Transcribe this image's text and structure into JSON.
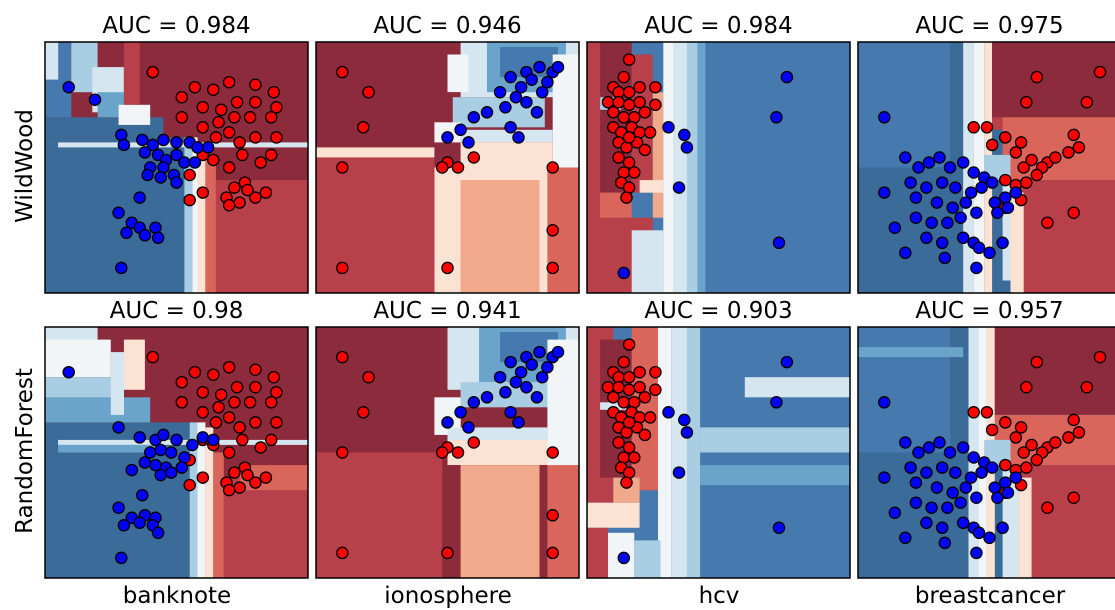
{
  "row_labels": [
    "WildWood",
    "RandomForest"
  ],
  "col_labels": [
    "banknote",
    "ionosphere",
    "hcv",
    "breastcancer"
  ],
  "colors": {
    "class0": "#0000ff",
    "class1": "#ff0000",
    "region_low": "#3b6b99",
    "region_high": "#8b2b3c",
    "point_edge": "#000000"
  },
  "chart_data": [
    {
      "type": "scatter",
      "dataset": "banknote",
      "model": "WildWood",
      "title": "AUC = 0.984",
      "auc": 0.984,
      "xlabel": "",
      "ylabel": "WildWood",
      "blue_points": [
        [
          0.09,
          0.82
        ],
        [
          0.19,
          0.77
        ],
        [
          0.29,
          0.63
        ],
        [
          0.3,
          0.59
        ],
        [
          0.37,
          0.61
        ],
        [
          0.41,
          0.59
        ],
        [
          0.45,
          0.61
        ],
        [
          0.5,
          0.6
        ],
        [
          0.55,
          0.6
        ],
        [
          0.58,
          0.58
        ],
        [
          0.62,
          0.58
        ],
        [
          0.38,
          0.56
        ],
        [
          0.43,
          0.55
        ],
        [
          0.46,
          0.53
        ],
        [
          0.5,
          0.55
        ],
        [
          0.53,
          0.52
        ],
        [
          0.4,
          0.5
        ],
        [
          0.45,
          0.5
        ],
        [
          0.49,
          0.47
        ],
        [
          0.39,
          0.47
        ],
        [
          0.44,
          0.46
        ],
        [
          0.5,
          0.44
        ],
        [
          0.57,
          0.52
        ],
        [
          0.36,
          0.38
        ],
        [
          0.28,
          0.32
        ],
        [
          0.33,
          0.28
        ],
        [
          0.36,
          0.26
        ],
        [
          0.42,
          0.26
        ],
        [
          0.38,
          0.23
        ],
        [
          0.43,
          0.22
        ],
        [
          0.31,
          0.24
        ],
        [
          0.29,
          0.1
        ]
      ]
    },
    {
      "type": "scatter",
      "dataset": "ionosphere",
      "model": "WildWood",
      "title": "AUC = 0.946",
      "auc": 0.946,
      "xlabel": "",
      "ylabel": "",
      "blue_points": [
        [
          0.8,
          0.88
        ],
        [
          0.85,
          0.9
        ],
        [
          0.9,
          0.88
        ],
        [
          0.74,
          0.86
        ],
        [
          0.78,
          0.82
        ],
        [
          0.82,
          0.85
        ],
        [
          0.88,
          0.84
        ],
        [
          0.92,
          0.9
        ],
        [
          0.7,
          0.8
        ],
        [
          0.76,
          0.78
        ],
        [
          0.8,
          0.76
        ],
        [
          0.86,
          0.8
        ],
        [
          0.72,
          0.74
        ],
        [
          0.84,
          0.72
        ],
        [
          0.65,
          0.72
        ],
        [
          0.6,
          0.7
        ],
        [
          0.55,
          0.65
        ],
        [
          0.5,
          0.62
        ],
        [
          0.74,
          0.66
        ],
        [
          0.77,
          0.62
        ],
        [
          0.58,
          0.6
        ]
      ]
    },
    {
      "type": "scatter",
      "dataset": "hcv",
      "model": "WildWood",
      "title": "AUC = 0.984",
      "auc": 0.984,
      "xlabel": "",
      "ylabel": "",
      "blue_points": [
        [
          0.76,
          0.86
        ],
        [
          0.72,
          0.7
        ],
        [
          0.31,
          0.66
        ],
        [
          0.37,
          0.63
        ],
        [
          0.38,
          0.58
        ],
        [
          0.35,
          0.42
        ],
        [
          0.73,
          0.2
        ],
        [
          0.14,
          0.08
        ]
      ]
    },
    {
      "type": "scatter",
      "dataset": "breastcancer",
      "model": "WildWood",
      "title": "AUC = 0.975",
      "auc": 0.975,
      "xlabel": "",
      "ylabel": "",
      "blue_points": [
        [
          0.1,
          0.7
        ],
        [
          0.18,
          0.54
        ],
        [
          0.23,
          0.5
        ],
        [
          0.27,
          0.52
        ],
        [
          0.31,
          0.54
        ],
        [
          0.35,
          0.5
        ],
        [
          0.4,
          0.52
        ],
        [
          0.44,
          0.48
        ],
        [
          0.48,
          0.46
        ],
        [
          0.2,
          0.44
        ],
        [
          0.26,
          0.42
        ],
        [
          0.32,
          0.44
        ],
        [
          0.37,
          0.42
        ],
        [
          0.43,
          0.4
        ],
        [
          0.47,
          0.42
        ],
        [
          0.51,
          0.44
        ],
        [
          0.1,
          0.4
        ],
        [
          0.22,
          0.38
        ],
        [
          0.3,
          0.36
        ],
        [
          0.36,
          0.34
        ],
        [
          0.41,
          0.36
        ],
        [
          0.45,
          0.32
        ],
        [
          0.52,
          0.36
        ],
        [
          0.56,
          0.38
        ],
        [
          0.6,
          0.4
        ],
        [
          0.22,
          0.3
        ],
        [
          0.28,
          0.28
        ],
        [
          0.34,
          0.28
        ],
        [
          0.39,
          0.3
        ],
        [
          0.53,
          0.32
        ],
        [
          0.57,
          0.34
        ],
        [
          0.14,
          0.26
        ],
        [
          0.26,
          0.22
        ],
        [
          0.32,
          0.2
        ],
        [
          0.4,
          0.22
        ],
        [
          0.44,
          0.2
        ],
        [
          0.46,
          0.18
        ],
        [
          0.55,
          0.2
        ],
        [
          0.5,
          0.16
        ],
        [
          0.18,
          0.16
        ],
        [
          0.33,
          0.14
        ],
        [
          0.45,
          0.1
        ]
      ]
    },
    {
      "type": "scatter",
      "dataset": "banknote",
      "model": "RandomForest",
      "title": "AUC = 0.98",
      "auc": 0.98,
      "xlabel": "banknote",
      "ylabel": "RandomForest",
      "blue_points": [
        [
          0.09,
          0.82
        ],
        [
          0.28,
          0.6
        ],
        [
          0.36,
          0.56
        ],
        [
          0.42,
          0.55
        ],
        [
          0.45,
          0.57
        ],
        [
          0.5,
          0.55
        ],
        [
          0.56,
          0.53
        ],
        [
          0.6,
          0.56
        ],
        [
          0.64,
          0.55
        ],
        [
          0.4,
          0.5
        ],
        [
          0.44,
          0.51
        ],
        [
          0.48,
          0.5
        ],
        [
          0.53,
          0.48
        ],
        [
          0.38,
          0.46
        ],
        [
          0.42,
          0.45
        ],
        [
          0.46,
          0.44
        ],
        [
          0.52,
          0.44
        ],
        [
          0.44,
          0.41
        ],
        [
          0.48,
          0.42
        ],
        [
          0.33,
          0.43
        ],
        [
          0.37,
          0.33
        ],
        [
          0.28,
          0.28
        ],
        [
          0.33,
          0.24
        ],
        [
          0.38,
          0.25
        ],
        [
          0.42,
          0.24
        ],
        [
          0.36,
          0.22
        ],
        [
          0.41,
          0.21
        ],
        [
          0.43,
          0.18
        ],
        [
          0.3,
          0.21
        ],
        [
          0.29,
          0.08
        ]
      ]
    },
    {
      "type": "scatter",
      "dataset": "ionosphere",
      "model": "RandomForest",
      "title": "AUC = 0.941",
      "auc": 0.941,
      "xlabel": "ionosphere",
      "ylabel": "",
      "blue_points": [
        [
          0.8,
          0.88
        ],
        [
          0.85,
          0.9
        ],
        [
          0.9,
          0.88
        ],
        [
          0.74,
          0.86
        ],
        [
          0.78,
          0.82
        ],
        [
          0.82,
          0.85
        ],
        [
          0.88,
          0.84
        ],
        [
          0.92,
          0.9
        ],
        [
          0.7,
          0.8
        ],
        [
          0.76,
          0.78
        ],
        [
          0.8,
          0.76
        ],
        [
          0.86,
          0.8
        ],
        [
          0.72,
          0.74
        ],
        [
          0.84,
          0.72
        ],
        [
          0.65,
          0.72
        ],
        [
          0.6,
          0.7
        ],
        [
          0.55,
          0.66
        ],
        [
          0.5,
          0.62
        ],
        [
          0.74,
          0.66
        ],
        [
          0.77,
          0.62
        ],
        [
          0.58,
          0.6
        ]
      ]
    },
    {
      "type": "scatter",
      "dataset": "hcv",
      "model": "RandomForest",
      "title": "AUC = 0.903",
      "auc": 0.903,
      "xlabel": "hcv",
      "ylabel": "",
      "blue_points": [
        [
          0.76,
          0.86
        ],
        [
          0.72,
          0.7
        ],
        [
          0.31,
          0.66
        ],
        [
          0.37,
          0.63
        ],
        [
          0.38,
          0.58
        ],
        [
          0.35,
          0.42
        ],
        [
          0.73,
          0.2
        ],
        [
          0.14,
          0.08
        ]
      ]
    },
    {
      "type": "scatter",
      "dataset": "breastcancer",
      "model": "RandomForest",
      "title": "AUC = 0.957",
      "auc": 0.957,
      "xlabel": "breastcancer",
      "ylabel": "",
      "blue_points": [
        [
          0.1,
          0.7
        ],
        [
          0.18,
          0.54
        ],
        [
          0.23,
          0.5
        ],
        [
          0.27,
          0.52
        ],
        [
          0.31,
          0.54
        ],
        [
          0.35,
          0.5
        ],
        [
          0.4,
          0.52
        ],
        [
          0.44,
          0.48
        ],
        [
          0.48,
          0.46
        ],
        [
          0.2,
          0.44
        ],
        [
          0.26,
          0.42
        ],
        [
          0.32,
          0.44
        ],
        [
          0.37,
          0.42
        ],
        [
          0.43,
          0.4
        ],
        [
          0.47,
          0.42
        ],
        [
          0.51,
          0.44
        ],
        [
          0.1,
          0.4
        ],
        [
          0.22,
          0.38
        ],
        [
          0.3,
          0.36
        ],
        [
          0.36,
          0.34
        ],
        [
          0.41,
          0.36
        ],
        [
          0.45,
          0.32
        ],
        [
          0.52,
          0.36
        ],
        [
          0.56,
          0.38
        ],
        [
          0.6,
          0.4
        ],
        [
          0.22,
          0.3
        ],
        [
          0.28,
          0.28
        ],
        [
          0.34,
          0.28
        ],
        [
          0.39,
          0.3
        ],
        [
          0.53,
          0.32
        ],
        [
          0.57,
          0.34
        ],
        [
          0.14,
          0.26
        ],
        [
          0.26,
          0.22
        ],
        [
          0.32,
          0.2
        ],
        [
          0.4,
          0.22
        ],
        [
          0.44,
          0.2
        ],
        [
          0.46,
          0.18
        ],
        [
          0.55,
          0.2
        ],
        [
          0.5,
          0.16
        ],
        [
          0.18,
          0.16
        ],
        [
          0.33,
          0.14
        ],
        [
          0.45,
          0.1
        ]
      ]
    }
  ],
  "red_points": {
    "banknote": [
      [
        0.41,
        0.88
      ],
      [
        0.57,
        0.82
      ],
      [
        0.64,
        0.81
      ],
      [
        0.7,
        0.84
      ],
      [
        0.8,
        0.83
      ],
      [
        0.87,
        0.8
      ],
      [
        0.52,
        0.78
      ],
      [
        0.6,
        0.74
      ],
      [
        0.67,
        0.73
      ],
      [
        0.73,
        0.76
      ],
      [
        0.8,
        0.76
      ],
      [
        0.88,
        0.74
      ],
      [
        0.52,
        0.7
      ],
      [
        0.6,
        0.66
      ],
      [
        0.66,
        0.68
      ],
      [
        0.72,
        0.7
      ],
      [
        0.78,
        0.7
      ],
      [
        0.86,
        0.7
      ],
      [
        0.65,
        0.62
      ],
      [
        0.7,
        0.64
      ],
      [
        0.74,
        0.6
      ],
      [
        0.8,
        0.62
      ],
      [
        0.88,
        0.62
      ],
      [
        0.6,
        0.55
      ],
      [
        0.64,
        0.53
      ],
      [
        0.7,
        0.5
      ],
      [
        0.75,
        0.55
      ],
      [
        0.82,
        0.52
      ],
      [
        0.86,
        0.55
      ],
      [
        0.55,
        0.47
      ],
      [
        0.72,
        0.42
      ],
      [
        0.76,
        0.44
      ],
      [
        0.84,
        0.4
      ],
      [
        0.69,
        0.38
      ],
      [
        0.74,
        0.36
      ],
      [
        0.8,
        0.38
      ],
      [
        0.55,
        0.37
      ],
      [
        0.7,
        0.35
      ],
      [
        0.6,
        0.4
      ],
      [
        0.77,
        0.41
      ]
    ],
    "ionosphere": [
      [
        0.1,
        0.88
      ],
      [
        0.2,
        0.8
      ],
      [
        0.18,
        0.66
      ],
      [
        0.1,
        0.5
      ],
      [
        0.5,
        0.52
      ],
      [
        0.54,
        0.5
      ],
      [
        0.6,
        0.54
      ],
      [
        0.48,
        0.5
      ],
      [
        0.9,
        0.5
      ],
      [
        0.9,
        0.25
      ],
      [
        0.1,
        0.1
      ],
      [
        0.5,
        0.1
      ],
      [
        0.9,
        0.1
      ]
    ],
    "hcv": [
      [
        0.16,
        0.93
      ],
      [
        0.14,
        0.86
      ],
      [
        0.1,
        0.82
      ],
      [
        0.12,
        0.8
      ],
      [
        0.16,
        0.8
      ],
      [
        0.2,
        0.82
      ],
      [
        0.08,
        0.76
      ],
      [
        0.12,
        0.76
      ],
      [
        0.16,
        0.75
      ],
      [
        0.2,
        0.76
      ],
      [
        0.26,
        0.75
      ],
      [
        0.1,
        0.72
      ],
      [
        0.14,
        0.7
      ],
      [
        0.18,
        0.7
      ],
      [
        0.22,
        0.72
      ],
      [
        0.1,
        0.66
      ],
      [
        0.13,
        0.64
      ],
      [
        0.17,
        0.66
      ],
      [
        0.2,
        0.64
      ],
      [
        0.24,
        0.64
      ],
      [
        0.12,
        0.6
      ],
      [
        0.15,
        0.58
      ],
      [
        0.19,
        0.6
      ],
      [
        0.22,
        0.57
      ],
      [
        0.12,
        0.54
      ],
      [
        0.16,
        0.52
      ],
      [
        0.14,
        0.48
      ],
      [
        0.18,
        0.48
      ],
      [
        0.13,
        0.44
      ],
      [
        0.16,
        0.42
      ],
      [
        0.15,
        0.38
      ],
      [
        0.26,
        0.82
      ],
      [
        0.16,
        0.62
      ]
    ],
    "breastcancer": [
      [
        0.92,
        0.88
      ],
      [
        0.68,
        0.86
      ],
      [
        0.64,
        0.76
      ],
      [
        0.87,
        0.76
      ],
      [
        0.44,
        0.66
      ],
      [
        0.49,
        0.66
      ],
      [
        0.51,
        0.59
      ],
      [
        0.56,
        0.62
      ],
      [
        0.6,
        0.56
      ],
      [
        0.62,
        0.6
      ],
      [
        0.82,
        0.63
      ],
      [
        0.66,
        0.53
      ],
      [
        0.72,
        0.52
      ],
      [
        0.63,
        0.5
      ],
      [
        0.7,
        0.5
      ],
      [
        0.75,
        0.54
      ],
      [
        0.8,
        0.56
      ],
      [
        0.84,
        0.58
      ],
      [
        0.68,
        0.47
      ],
      [
        0.56,
        0.45
      ],
      [
        0.6,
        0.43
      ],
      [
        0.64,
        0.44
      ],
      [
        0.82,
        0.32
      ],
      [
        0.72,
        0.28
      ],
      [
        0.62,
        0.37
      ],
      [
        0.56,
        0.34
      ]
    ]
  }
}
